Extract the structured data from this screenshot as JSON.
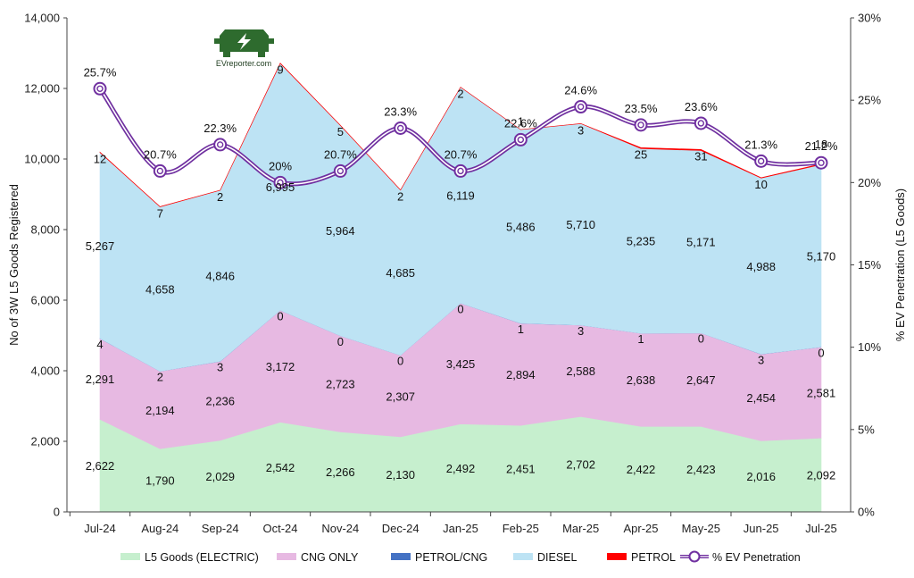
{
  "chart_data": {
    "type": "area",
    "stacked": true,
    "categories": [
      "Jul-24",
      "Aug-24",
      "Sep-24",
      "Oct-24",
      "Nov-24",
      "Dec-24",
      "Jan-25",
      "Feb-25",
      "Mar-25",
      "Apr-25",
      "May-25",
      "Jun-25",
      "Jul-25"
    ],
    "ylabel": "No of 3W L5 Goods Registered",
    "y2label": "% EV Penetration (L5 Goods)",
    "ylim": [
      0,
      14000
    ],
    "yticks": [
      "0",
      "2,000",
      "4,000",
      "6,000",
      "8,000",
      "10,000",
      "12,000",
      "14,000"
    ],
    "y2lim": [
      0,
      30
    ],
    "y2ticks": [
      "0%",
      "5%",
      "10%",
      "15%",
      "20%",
      "25%",
      "30%"
    ],
    "legend_position": "bottom",
    "grid": false,
    "series": [
      {
        "name": "L5 Goods (ELECTRIC)",
        "color": "#c6efce",
        "values": [
          2622,
          1790,
          2029,
          2542,
          2266,
          2130,
          2492,
          2451,
          2702,
          2422,
          2423,
          2016,
          2092
        ],
        "labels": [
          "2,622",
          "1,790",
          "2,029",
          "2,542",
          "2,266",
          "2,130",
          "2,492",
          "2,451",
          "2,702",
          "2,422",
          "2,423",
          "2,016",
          "2,092"
        ]
      },
      {
        "name": "CNG ONLY",
        "color": "#e7b9e2",
        "values": [
          2291,
          2194,
          2236,
          3172,
          2723,
          2307,
          3425,
          2894,
          2588,
          2638,
          2647,
          2454,
          2581
        ],
        "labels": [
          "2,291",
          "2,194",
          "2,236",
          "3,172",
          "2,723",
          "2,307",
          "3,425",
          "2,894",
          "2,588",
          "2,638",
          "2,647",
          "2,454",
          "2,581"
        ]
      },
      {
        "name": "PETROL/CNG",
        "color": "#4472c4",
        "values": [
          4,
          2,
          3,
          0,
          0,
          0,
          0,
          1,
          3,
          1,
          0,
          3,
          0
        ],
        "labels": [
          "4",
          "2",
          "3",
          "0",
          "0",
          "0",
          "0",
          "1",
          "3",
          "1",
          "0",
          "3",
          "0"
        ]
      },
      {
        "name": "DIESEL",
        "color": "#bde3f4",
        "values": [
          5267,
          4658,
          4846,
          6995,
          5964,
          4685,
          6119,
          5486,
          5710,
          5235,
          5171,
          4988,
          5170
        ],
        "labels": [
          "5,267",
          "4,658",
          "4,846",
          "6,995",
          "5,964",
          "4,685",
          "6,119",
          "5,486",
          "5,710",
          "5,235",
          "5,171",
          "4,988",
          "5,170"
        ]
      },
      {
        "name": "PETROL",
        "color": "#ff0000",
        "values": [
          12,
          7,
          2,
          9,
          5,
          2,
          2,
          1,
          3,
          25,
          31,
          10,
          18
        ],
        "labels": [
          "12",
          "7",
          "2",
          "9",
          "5",
          "2",
          "2",
          "1",
          "3",
          "25",
          "31",
          "10",
          "18"
        ]
      }
    ],
    "line_series": {
      "name": "% EV Penetration",
      "color": "#7030a0",
      "axis": "right",
      "values": [
        25.7,
        20.7,
        22.3,
        20,
        20.7,
        23.3,
        20.7,
        22.6,
        24.6,
        23.5,
        23.6,
        21.3,
        21.2
      ],
      "labels": [
        "25.7%",
        "20.7%",
        "22.3%",
        "20%",
        "20.7%",
        "23.3%",
        "20.7%",
        "22.6%",
        "24.6%",
        "23.5%",
        "23.6%",
        "21.3%",
        "21.2%"
      ]
    }
  },
  "logo": {
    "text": "EVreporter.com",
    "icon": "truck-bolt-icon",
    "color": "#2e6b2e"
  }
}
